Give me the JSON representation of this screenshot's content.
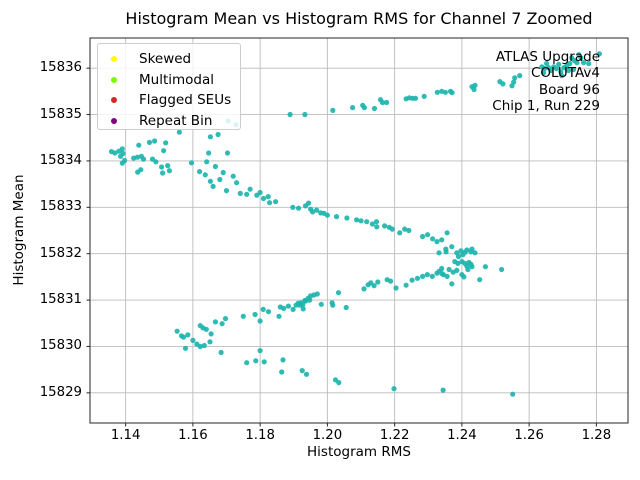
{
  "chart_data": {
    "type": "scatter",
    "title": "Histogram Mean vs Histogram RMS for Channel 7 Zoomed",
    "xlabel": "Histogram RMS",
    "ylabel": "Histogram Mean",
    "xlim": [
      1.1294,
      1.2894
    ],
    "ylim": [
      15828.35,
      15836.65
    ],
    "xticks": [
      1.14,
      1.16,
      1.18,
      1.2,
      1.22,
      1.24,
      1.26,
      1.28
    ],
    "xtick_labels": [
      "1.14",
      "1.16",
      "1.18",
      "1.20",
      "1.22",
      "1.24",
      "1.26",
      "1.28"
    ],
    "yticks": [
      15829,
      15830,
      15831,
      15832,
      15833,
      15834,
      15835,
      15836
    ],
    "ytick_labels": [
      "15829",
      "15830",
      "15831",
      "15832",
      "15833",
      "15834",
      "15835",
      "15836"
    ],
    "grid": true,
    "grid_color": "#bbbbbb",
    "spine_color": "#262626",
    "legend": {
      "position": "upper left",
      "items": [
        {
          "label": "Skewed",
          "color": "#ffff00"
        },
        {
          "label": "Multimodal",
          "color": "#7cfc00"
        },
        {
          "label": "Flagged SEUs",
          "color": "#d62728"
        },
        {
          "label": "Repeat Bin",
          "color": "#800080"
        }
      ]
    },
    "annotation": {
      "align": "right",
      "lines": [
        "ATLAS Upgrade",
        "COLUTAv4",
        "Board 96",
        "Chip 1, Run 229"
      ]
    },
    "series": [
      {
        "name": "channel-7-points",
        "color": "#1db4ae",
        "marker": "point",
        "points": [
          [
            1.1358,
            15834.2
          ],
          [
            1.1368,
            15834.17
          ],
          [
            1.138,
            15834.21
          ],
          [
            1.139,
            15834.26
          ],
          [
            1.1392,
            15834.16
          ],
          [
            1.1385,
            15834.1
          ],
          [
            1.1397,
            15834.01
          ],
          [
            1.139,
            15833.95
          ],
          [
            1.1424,
            15834.06
          ],
          [
            1.1435,
            15834.08
          ],
          [
            1.1447,
            15834.1
          ],
          [
            1.1453,
            15834.04
          ],
          [
            1.1439,
            15834.34
          ],
          [
            1.1471,
            15834.4
          ],
          [
            1.1486,
            15834.43
          ],
          [
            1.1519,
            15834.39
          ],
          [
            1.1513,
            15834.22
          ],
          [
            1.1445,
            15833.81
          ],
          [
            1.1436,
            15833.76
          ],
          [
            1.148,
            15834.04
          ],
          [
            1.149,
            15833.98
          ],
          [
            1.1507,
            15833.87
          ],
          [
            1.1525,
            15833.9
          ],
          [
            1.153,
            15833.79
          ],
          [
            1.151,
            15833.74
          ],
          [
            1.156,
            15834.62
          ],
          [
            1.1596,
            15833.96
          ],
          [
            1.1641,
            15833.98
          ],
          [
            1.1647,
            15834.17
          ],
          [
            1.1703,
            15834.17
          ],
          [
            1.1652,
            15834.52
          ],
          [
            1.1675,
            15834.57
          ],
          [
            1.1705,
            15834.86
          ],
          [
            1.1728,
            15834.78
          ],
          [
            1.1667,
            15833.88
          ],
          [
            1.162,
            15833.77
          ],
          [
            1.1637,
            15833.7
          ],
          [
            1.1652,
            15833.56
          ],
          [
            1.166,
            15833.45
          ],
          [
            1.168,
            15833.6
          ],
          [
            1.169,
            15833.75
          ],
          [
            1.17,
            15833.36
          ],
          [
            1.172,
            15833.67
          ],
          [
            1.173,
            15833.53
          ],
          [
            1.1741,
            15833.3
          ],
          [
            1.176,
            15833.28
          ],
          [
            1.177,
            15833.39
          ],
          [
            1.179,
            15833.26
          ],
          [
            1.18,
            15833.32
          ],
          [
            1.181,
            15833.19
          ],
          [
            1.1824,
            15833.23
          ],
          [
            1.1828,
            15833.1
          ],
          [
            1.1846,
            15833.12
          ],
          [
            1.1897,
            15833.0
          ],
          [
            1.1914,
            15832.98
          ],
          [
            1.1935,
            15833.03
          ],
          [
            1.1944,
            15833.09
          ],
          [
            1.195,
            15832.96
          ],
          [
            1.1956,
            15832.9
          ],
          [
            1.1968,
            15832.94
          ],
          [
            1.198,
            15832.88
          ],
          [
            1.199,
            15832.87
          ],
          [
            1.2,
            15832.83
          ],
          [
            1.2027,
            15832.8
          ],
          [
            1.2058,
            15832.77
          ],
          [
            1.2087,
            15832.73
          ],
          [
            1.21,
            15832.71
          ],
          [
            1.2117,
            15832.69
          ],
          [
            1.2134,
            15832.64
          ],
          [
            1.2146,
            15832.69
          ],
          [
            1.2147,
            15832.58
          ],
          [
            1.217,
            15832.6
          ],
          [
            1.2184,
            15832.57
          ],
          [
            1.2193,
            15832.53
          ],
          [
            1.2215,
            15832.45
          ],
          [
            1.223,
            15832.53
          ],
          [
            1.2242,
            15832.5
          ],
          [
            1.2283,
            15832.37
          ],
          [
            1.2298,
            15832.41
          ],
          [
            1.2313,
            15832.32
          ],
          [
            1.2326,
            15832.26
          ],
          [
            1.234,
            15832.3
          ],
          [
            1.2352,
            15832.1
          ],
          [
            1.2356,
            15832.45
          ],
          [
            1.2332,
            15832.02
          ],
          [
            1.2353,
            15832.04
          ],
          [
            1.237,
            15832.15
          ],
          [
            1.2385,
            15832.02
          ],
          [
            1.2397,
            15832.06
          ],
          [
            1.2403,
            15831.98
          ],
          [
            1.239,
            15831.94
          ],
          [
            1.2409,
            15832.03
          ],
          [
            1.2415,
            15832.08
          ],
          [
            1.2427,
            15832.04
          ],
          [
            1.243,
            15832.1
          ],
          [
            1.2439,
            15832.02
          ],
          [
            1.2379,
            15831.83
          ],
          [
            1.2388,
            15831.79
          ],
          [
            1.24,
            15831.83
          ],
          [
            1.2409,
            15831.79
          ],
          [
            1.2415,
            15831.73
          ],
          [
            1.2421,
            15831.81
          ],
          [
            1.2427,
            15831.77
          ],
          [
            1.243,
            15831.72
          ],
          [
            1.2418,
            15831.66
          ],
          [
            1.2362,
            15831.66
          ],
          [
            1.2374,
            15831.6
          ],
          [
            1.2385,
            15831.64
          ],
          [
            1.2356,
            15831.51
          ],
          [
            1.2341,
            15831.57
          ],
          [
            1.2332,
            15831.62
          ],
          [
            1.24,
            15831.55
          ],
          [
            1.2406,
            15831.5
          ],
          [
            1.237,
            15831.35
          ],
          [
            1.2453,
            15831.44
          ],
          [
            1.247,
            15831.72
          ],
          [
            1.2518,
            15831.66
          ],
          [
            1.2345,
            15831.55
          ],
          [
            1.234,
            15831.68
          ],
          [
            1.2326,
            15831.58
          ],
          [
            1.2312,
            15831.51
          ],
          [
            1.2297,
            15831.55
          ],
          [
            1.2283,
            15831.51
          ],
          [
            1.2268,
            15831.47
          ],
          [
            1.2252,
            15831.43
          ],
          [
            1.2234,
            15831.32
          ],
          [
            1.2204,
            15831.26
          ],
          [
            1.2188,
            15831.41
          ],
          [
            1.2178,
            15831.44
          ],
          [
            1.215,
            15831.39
          ],
          [
            1.2139,
            15831.31
          ],
          [
            1.2129,
            15831.37
          ],
          [
            1.2121,
            15831.33
          ],
          [
            1.2109,
            15831.24
          ],
          [
            1.2033,
            15831.16
          ],
          [
            1.2014,
            15830.94
          ],
          [
            1.2016,
            15830.89
          ],
          [
            1.2056,
            15830.84
          ],
          [
            1.1982,
            15830.91
          ],
          [
            1.197,
            15831.13
          ],
          [
            1.196,
            15831.11
          ],
          [
            1.195,
            15831.09
          ],
          [
            1.1947,
            15831.0
          ],
          [
            1.1943,
            15831.04
          ],
          [
            1.1933,
            15830.99
          ],
          [
            1.1928,
            15830.81
          ],
          [
            1.1921,
            15830.94
          ],
          [
            1.1918,
            15830.89
          ],
          [
            1.1935,
            15830.98
          ],
          [
            1.1927,
            15830.9
          ],
          [
            1.1913,
            15830.93
          ],
          [
            1.1907,
            15830.89
          ],
          [
            1.1898,
            15830.8
          ],
          [
            1.1884,
            15830.87
          ],
          [
            1.187,
            15830.82
          ],
          [
            1.186,
            15830.85
          ],
          [
            1.1856,
            15830.65
          ],
          [
            1.1825,
            15830.75
          ],
          [
            1.1809,
            15830.8
          ],
          [
            1.18,
            15830.55
          ],
          [
            1.1785,
            15830.69
          ],
          [
            1.175,
            15830.65
          ],
          [
            1.1697,
            15830.6
          ],
          [
            1.1687,
            15830.49
          ],
          [
            1.1667,
            15830.53
          ],
          [
            1.1654,
            15830.27
          ],
          [
            1.1651,
            15830.1
          ],
          [
            1.164,
            15830.37
          ],
          [
            1.163,
            15830.4
          ],
          [
            1.1622,
            15830.45
          ],
          [
            1.1634,
            15830.02
          ],
          [
            1.1622,
            15830.0
          ],
          [
            1.1612,
            15830.05
          ],
          [
            1.16,
            15830.13
          ],
          [
            1.1585,
            15830.25
          ],
          [
            1.1572,
            15830.2
          ],
          [
            1.1566,
            15830.23
          ],
          [
            1.1553,
            15830.33
          ],
          [
            1.1578,
            15829.96
          ],
          [
            1.1684,
            15829.87
          ],
          [
            1.176,
            15829.65
          ],
          [
            1.1787,
            15829.69
          ],
          [
            1.18,
            15829.91
          ],
          [
            1.1812,
            15829.67
          ],
          [
            1.1868,
            15829.71
          ],
          [
            1.1864,
            15829.45
          ],
          [
            1.1925,
            15829.48
          ],
          [
            1.1938,
            15829.4
          ],
          [
            1.2024,
            15829.28
          ],
          [
            1.2034,
            15829.22
          ],
          [
            1.2198,
            15829.09
          ],
          [
            1.2344,
            15829.06
          ],
          [
            1.2551,
            15828.97
          ],
          [
            1.1889,
            15835.0
          ],
          [
            1.1933,
            15835.0
          ],
          [
            1.2016,
            15835.09
          ],
          [
            1.2075,
            15835.15
          ],
          [
            1.2105,
            15835.2
          ],
          [
            1.211,
            15835.15
          ],
          [
            1.214,
            15835.13
          ],
          [
            1.2158,
            15835.32
          ],
          [
            1.2164,
            15835.26
          ],
          [
            1.2176,
            15835.26
          ],
          [
            1.2234,
            15835.34
          ],
          [
            1.2244,
            15835.36
          ],
          [
            1.2253,
            15835.35
          ],
          [
            1.2262,
            15835.35
          ],
          [
            1.2288,
            15835.39
          ],
          [
            1.2327,
            15835.48
          ],
          [
            1.234,
            15835.5
          ],
          [
            1.2351,
            15835.48
          ],
          [
            1.2366,
            15835.5
          ],
          [
            1.2371,
            15835.47
          ],
          [
            1.243,
            15835.6
          ],
          [
            1.2436,
            15835.54
          ],
          [
            1.2439,
            15835.63
          ],
          [
            1.2513,
            15835.71
          ],
          [
            1.2522,
            15835.66
          ],
          [
            1.2549,
            15835.62
          ],
          [
            1.2554,
            15835.7
          ],
          [
            1.2557,
            15835.79
          ],
          [
            1.2572,
            15835.84
          ],
          [
            1.2638,
            15836.03
          ],
          [
            1.2643,
            15835.9
          ],
          [
            1.2646,
            15835.99
          ],
          [
            1.2652,
            15836.1
          ],
          [
            1.2658,
            15836.01
          ],
          [
            1.2664,
            15835.95
          ],
          [
            1.2673,
            15836.03
          ],
          [
            1.2681,
            15835.99
          ],
          [
            1.2688,
            15836.08
          ],
          [
            1.2694,
            15835.92
          ],
          [
            1.2697,
            15835.84
          ],
          [
            1.2703,
            15836.01
          ],
          [
            1.2711,
            15836.05
          ],
          [
            1.2717,
            15835.95
          ],
          [
            1.2721,
            15836.1
          ],
          [
            1.2727,
            15836.22
          ],
          [
            1.2732,
            15835.97
          ],
          [
            1.2735,
            15836.16
          ],
          [
            1.2742,
            15836.12
          ],
          [
            1.2748,
            15836.29
          ],
          [
            1.2754,
            15836.22
          ],
          [
            1.2762,
            15836.12
          ],
          [
            1.2777,
            15836.1
          ],
          [
            1.2809,
            15836.31
          ]
        ]
      }
    ]
  }
}
